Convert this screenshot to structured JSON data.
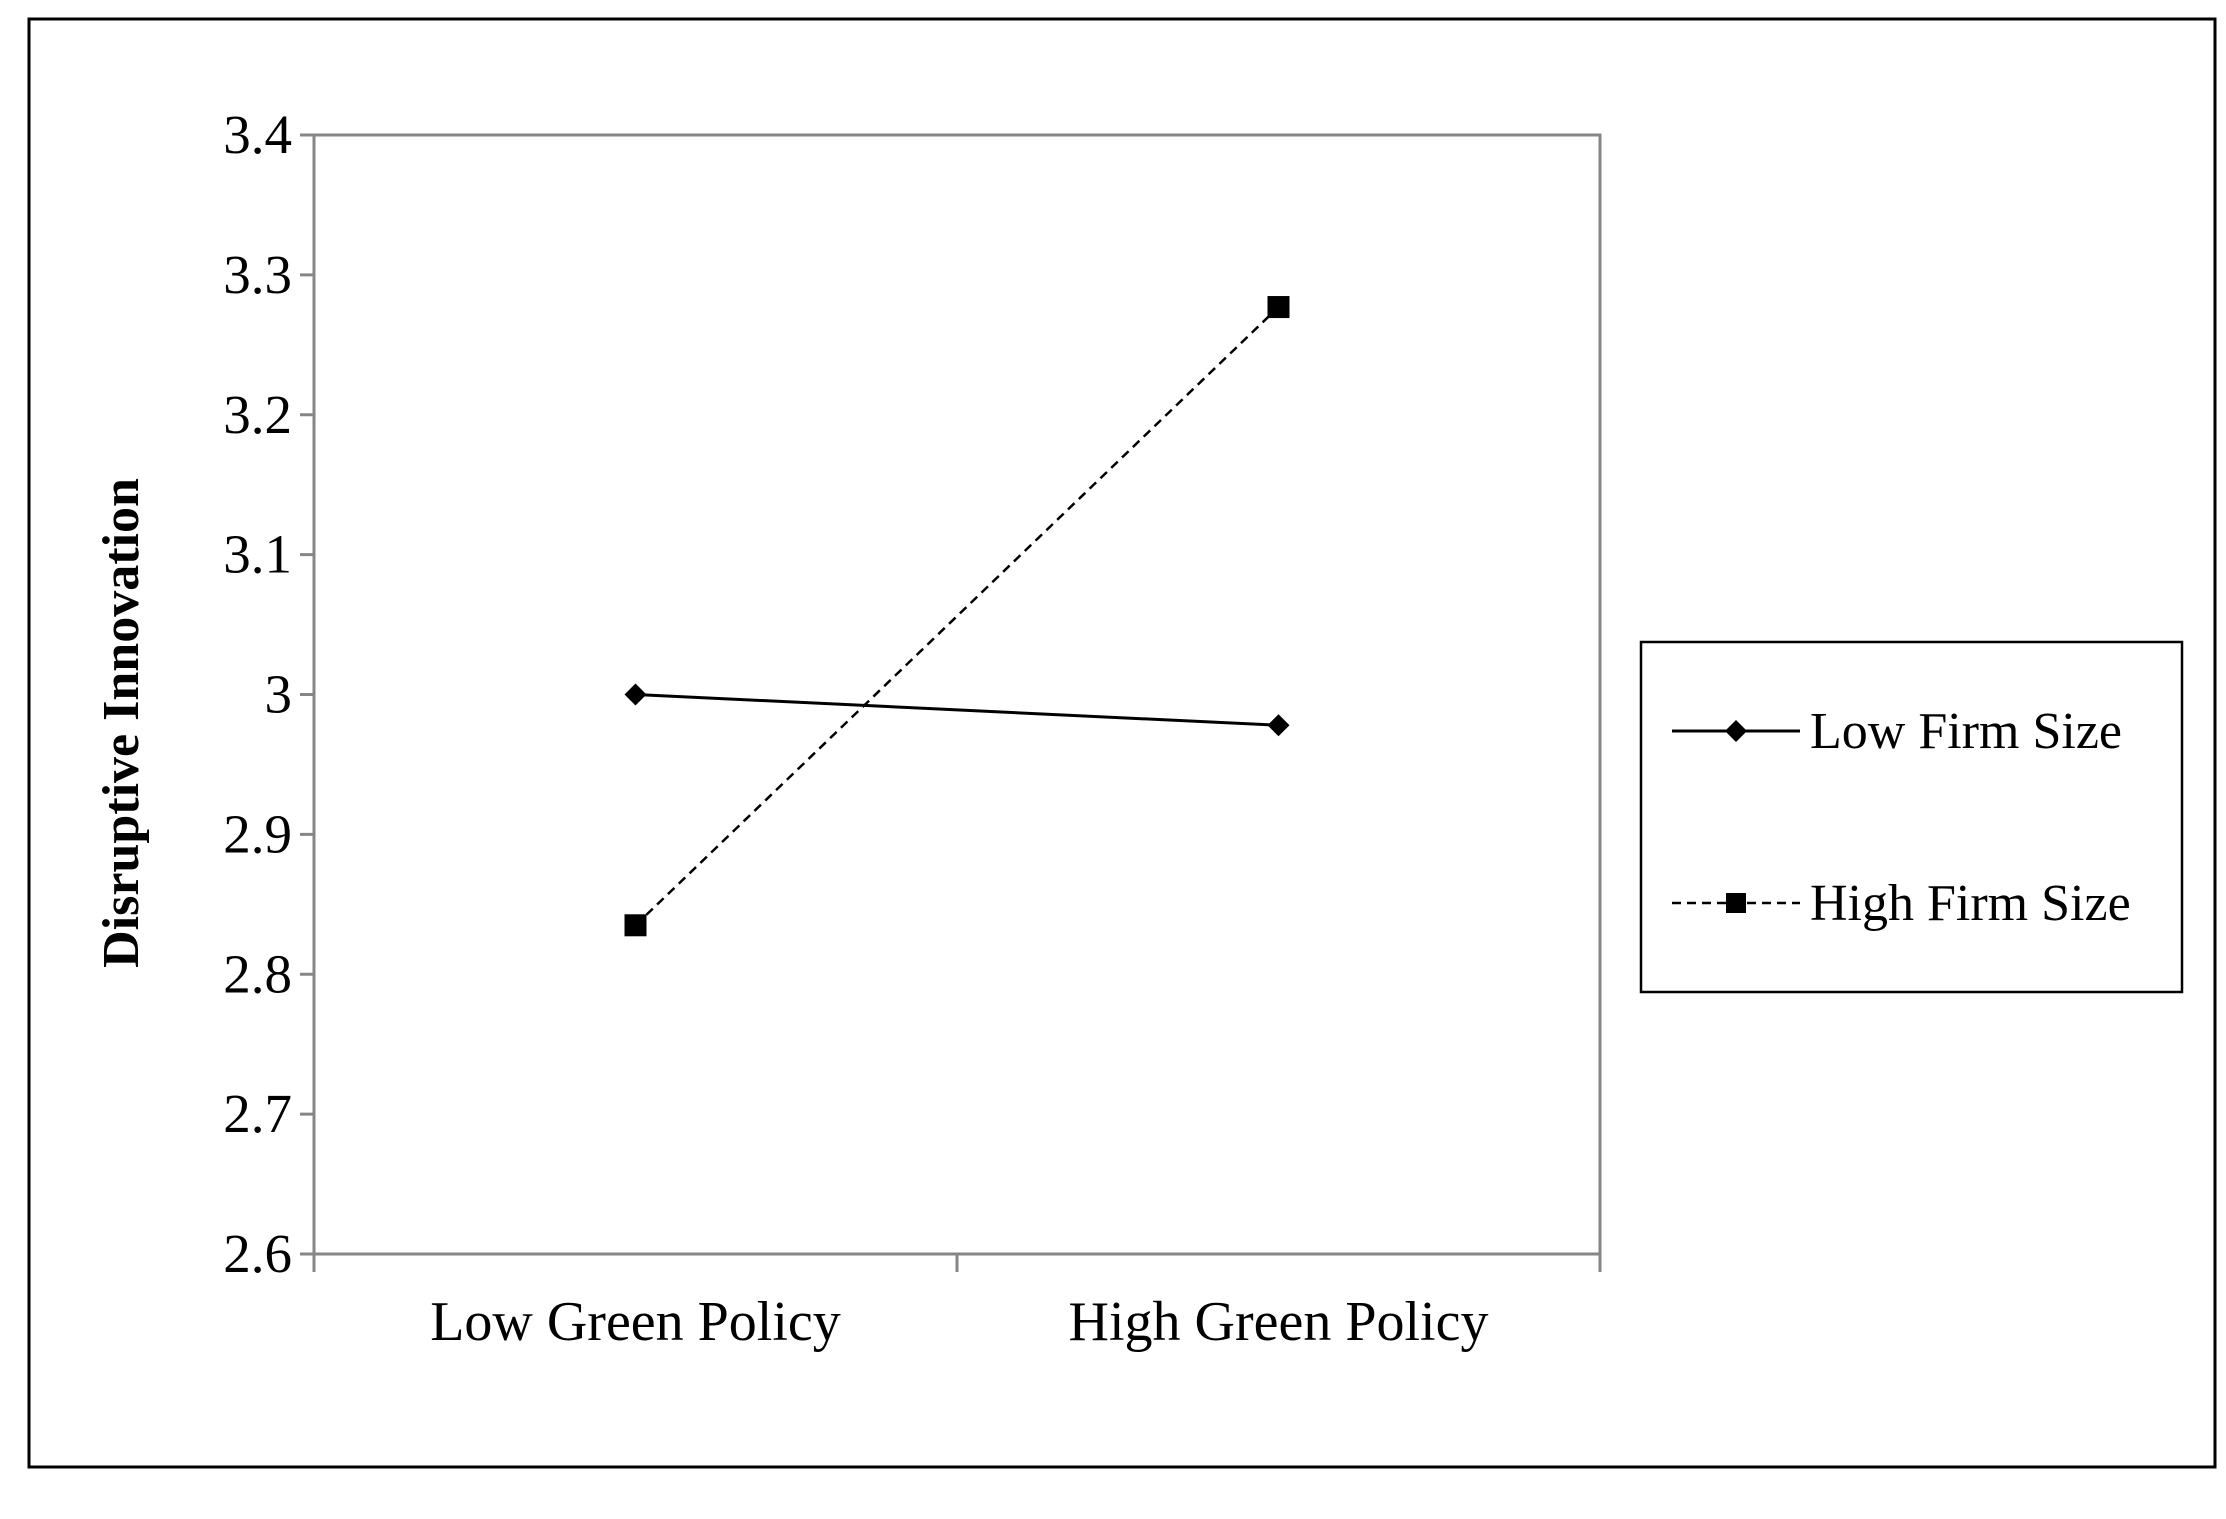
{
  "chart_data": {
    "type": "line",
    "title": "",
    "xlabel": "",
    "ylabel": "Disruptive Innovation",
    "categories": [
      "Low Green Policy",
      "High Green Policy"
    ],
    "ylim": [
      2.6,
      3.4
    ],
    "yticks": [
      "2.6",
      "2.7",
      "2.8",
      "2.9",
      "3",
      "3.1",
      "3.2",
      "3.3",
      "3.4"
    ],
    "grid": false,
    "legend_position": "right",
    "series": [
      {
        "name": "Low Firm Size",
        "values": [
          3.0,
          2.978
        ],
        "line_style": "solid",
        "marker": "diamond",
        "color": "#000000"
      },
      {
        "name": "High Firm Size",
        "values": [
          2.835,
          3.277
        ],
        "line_style": "dashed",
        "marker": "square",
        "color": "#000000"
      }
    ]
  }
}
